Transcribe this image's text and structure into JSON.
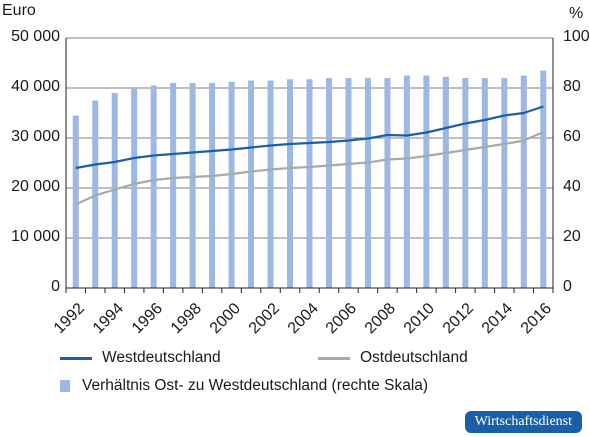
{
  "chart_data": {
    "type": "bar+line",
    "left_axis_unit": "Euro",
    "right_axis_unit": "%",
    "x": [
      "1992",
      "1993",
      "1994",
      "1995",
      "1996",
      "1997",
      "1998",
      "1999",
      "2000",
      "2001",
      "2002",
      "2003",
      "2004",
      "2005",
      "2006",
      "2007",
      "2008",
      "2009",
      "2010",
      "2011",
      "2012",
      "2013",
      "2014",
      "2015",
      "2016"
    ],
    "x_tick_labels": [
      "1992",
      "1994",
      "1996",
      "1998",
      "2000",
      "2002",
      "2004",
      "2006",
      "2008",
      "2010",
      "2012",
      "2014",
      "2016"
    ],
    "left_ylim": [
      0,
      50000
    ],
    "right_ylim": [
      0,
      100
    ],
    "left_tick_labels": [
      "0",
      "10 000",
      "20 000",
      "30 000",
      "40 000",
      "50 000"
    ],
    "right_tick_labels": [
      "0",
      "20",
      "40",
      "60",
      "80",
      "100"
    ],
    "grid": true,
    "series": [
      {
        "name": "Westdeutschland",
        "kind": "line",
        "axis": "left",
        "color": "#1a5fa8",
        "values": [
          24000,
          24700,
          25200,
          26000,
          26500,
          26800,
          27100,
          27400,
          27700,
          28100,
          28500,
          28800,
          29000,
          29200,
          29500,
          29900,
          30600,
          30500,
          31100,
          32000,
          32900,
          33600,
          34500,
          35000,
          36300
        ]
      },
      {
        "name": "Ostdeutschland",
        "kind": "line",
        "axis": "left",
        "color": "#a9a9a9",
        "values": [
          16700,
          18500,
          19700,
          20800,
          21600,
          22000,
          22200,
          22400,
          22800,
          23300,
          23700,
          24000,
          24200,
          24500,
          24800,
          25100,
          25700,
          25900,
          26400,
          27000,
          27600,
          28200,
          28800,
          29500,
          31200
        ]
      },
      {
        "name": "Verhältnis Ost- zu Westdeutschland (rechte Skala)",
        "kind": "bar",
        "axis": "right",
        "color": "#9db8e3",
        "values": [
          69,
          75,
          78,
          80,
          81,
          82,
          82,
          82,
          82.5,
          83,
          83,
          83.5,
          83.5,
          84,
          84,
          84,
          84,
          85,
          85,
          84.5,
          84,
          84,
          84,
          85,
          87
        ]
      }
    ]
  },
  "badge": {
    "label": "Wirtschaftsdienst",
    "color": "#1a5fa8"
  }
}
